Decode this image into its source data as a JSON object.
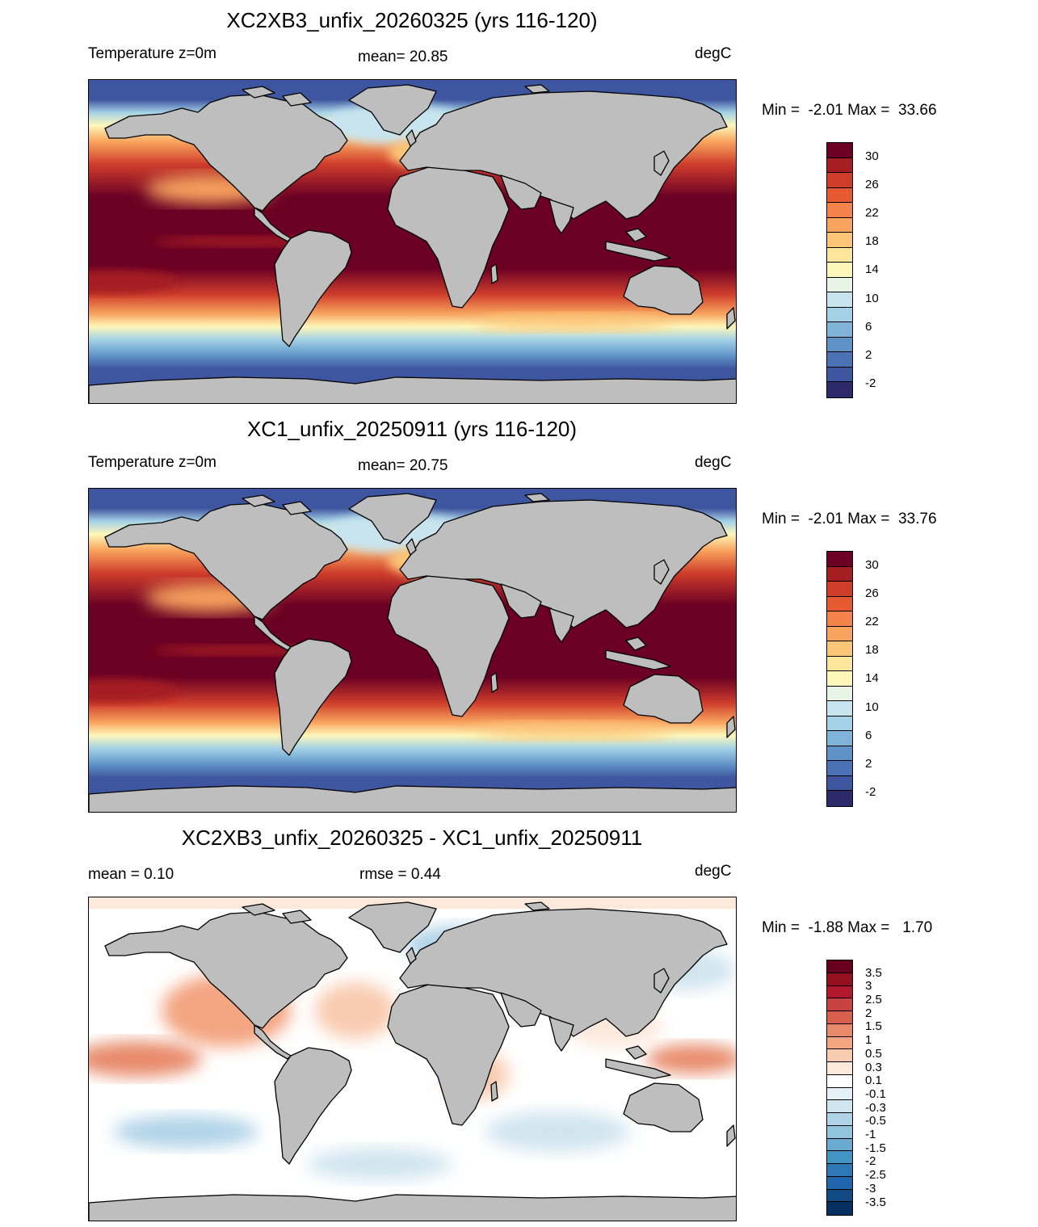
{
  "panels": [
    {
      "title": "XC2XB3_unfix_20260325 (yrs 116-120)",
      "left_label": "Temperature z=0m",
      "center_label": "mean=  20.85",
      "right_label": "degC",
      "minmax": "Min =  -2.01 Max =  33.66",
      "colorbar_labels": [
        "30",
        "26",
        "22",
        "18",
        "14",
        "10",
        "6",
        "2",
        "-2"
      ]
    },
    {
      "title": "XC1_unfix_20250911 (yrs 116-120)",
      "left_label": "Temperature z=0m",
      "center_label": "mean=  20.75",
      "right_label": "degC",
      "minmax": "Min =  -2.01 Max =  33.76",
      "colorbar_labels": [
        "30",
        "26",
        "22",
        "18",
        "14",
        "10",
        "6",
        "2",
        "-2"
      ]
    },
    {
      "title": "XC2XB3_unfix_20260325 - XC1_unfix_20250911",
      "left_label": "mean =   0.10",
      "center_label": "rmse =   0.44",
      "right_label": "degC",
      "minmax": "Min =  -1.88 Max =   1.70",
      "colorbar_labels": [
        "3.5",
        "3",
        "2.5",
        "2",
        "1.5",
        "1",
        "0.5",
        "0.3",
        "0.1",
        "-0.1",
        "-0.3",
        "-0.5",
        "-1",
        "-1.5",
        "-2",
        "-2.5",
        "-3",
        "-3.5"
      ]
    }
  ],
  "colors": {
    "land": "#bebebe",
    "temp_scale": [
      "#6b0024",
      "#a51e22",
      "#cf3d2b",
      "#e65a32",
      "#f4824b",
      "#f8a45e",
      "#fcc678",
      "#fde59b",
      "#fdf7ba",
      "#e8f4e6",
      "#c8e4ef",
      "#a3d1e6",
      "#7fb4d8",
      "#5f93c7",
      "#4b72b4",
      "#3e559f",
      "#2c2a6a"
    ],
    "diff_scale": [
      "#67001f",
      "#94101f",
      "#b2182b",
      "#c74341",
      "#d6604d",
      "#e88a6a",
      "#f4a582",
      "#f9cbb0",
      "#fde8dc",
      "#ffffff",
      "#e4eff6",
      "#d1e5f0",
      "#b0d3e8",
      "#92c5de",
      "#6aa9d0",
      "#4393c3",
      "#2e78b5",
      "#2166ac",
      "#124b84",
      "#053061"
    ]
  }
}
